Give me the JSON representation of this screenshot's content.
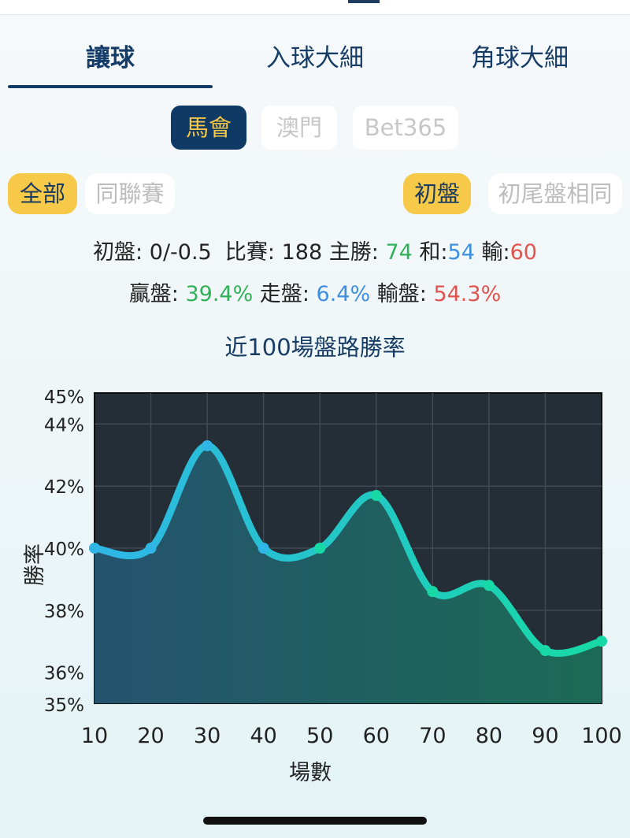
{
  "tabs": [
    {
      "label": "讓球",
      "active": true
    },
    {
      "label": "入球大細",
      "active": false
    },
    {
      "label": "角球大細",
      "active": false
    }
  ],
  "bookmakers": [
    {
      "label": "馬會",
      "selected": true
    },
    {
      "label": "澳門",
      "selected": false
    },
    {
      "label": "Bet365",
      "selected": false
    }
  ],
  "filters": {
    "scope_all": "全部",
    "scope_same_league": "同聯賽",
    "line_initial": "初盤",
    "line_same_final": "初尾盤相同"
  },
  "stats": {
    "initial_label": "初盤:",
    "initial_value": "0/-0.5",
    "matches_label": "比賽:",
    "matches_value": "188",
    "home_win_label": "主勝:",
    "home_win_value": "74",
    "draw_label": "和:",
    "draw_value": "54",
    "loss_label": "輸:",
    "loss_value": "60",
    "win_pct_label": "贏盤:",
    "win_pct_value": "39.4%",
    "push_pct_label": "走盤:",
    "push_pct_value": "6.4%",
    "lose_pct_label": "輸盤:",
    "lose_pct_value": "54.3%"
  },
  "colors": {
    "green": "#31b15a",
    "blue": "#3d8fe0",
    "red": "#e0544f",
    "navy": "#153b68",
    "yellow": "#f7c948"
  },
  "chart_data": {
    "type": "area",
    "title": "近100場盤路勝率",
    "xlabel": "場數",
    "ylabel": "勝率",
    "x": [
      10,
      20,
      30,
      40,
      50,
      60,
      70,
      80,
      90,
      100
    ],
    "values": [
      40.0,
      40.0,
      43.3,
      40.0,
      40.0,
      41.7,
      38.6,
      38.8,
      36.7,
      37.0
    ],
    "ylim": [
      35,
      45
    ],
    "yticks": [
      "35%",
      "36%",
      "38%",
      "40%",
      "42%",
      "44%",
      "45%"
    ],
    "ytick_values": [
      35,
      36,
      38,
      40,
      42,
      44,
      45
    ],
    "xticks": [
      "10",
      "20",
      "30",
      "40",
      "50",
      "60",
      "70",
      "80",
      "90",
      "100"
    ],
    "grid": true
  }
}
